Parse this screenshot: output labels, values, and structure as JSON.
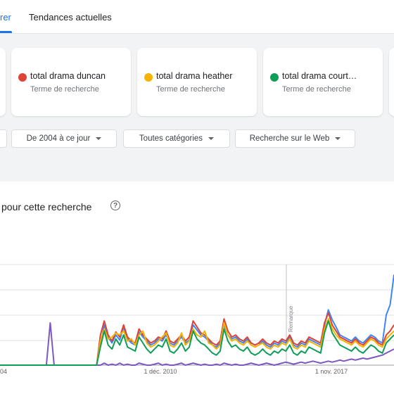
{
  "tabs": [
    {
      "label": "rer"
    },
    {
      "label": "Tendances actuelles"
    }
  ],
  "terms": [
    {
      "term": "total drama duncan",
      "subtitle": "Terme de recherche",
      "color": "#db4437"
    },
    {
      "term": "total drama heather",
      "subtitle": "Terme de recherche",
      "color": "#f4b400"
    },
    {
      "term": "total drama court…",
      "subtitle": "Terme de recherche",
      "color": "#0f9d58"
    }
  ],
  "filters": {
    "period": "De 2004 à ce jour",
    "category": "Toutes catégories",
    "search_type": "Recherche sur le Web"
  },
  "section": {
    "title": "pour cette recherche",
    "help_icon": "help-circle-icon"
  },
  "chart_data": {
    "type": "line",
    "x_ticks": [
      "04",
      "1 déc. 2010",
      "1 nov. 2017"
    ],
    "annotation": "Remarque",
    "series": [
      {
        "color": "#4285f4",
        "values": [
          0,
          0,
          0,
          0,
          0,
          0,
          0,
          0,
          0,
          0,
          0,
          0,
          0,
          0,
          0,
          0,
          0,
          0,
          0,
          0,
          0,
          0,
          0,
          0,
          0,
          0,
          20,
          40,
          28,
          22,
          30,
          25,
          38,
          26,
          22,
          20,
          33,
          28,
          24,
          20,
          22,
          26,
          24,
          30,
          22,
          20,
          24,
          28,
          22,
          25,
          40,
          35,
          30,
          28,
          24,
          20,
          18,
          22,
          40,
          30,
          26,
          28,
          24,
          22,
          26,
          20,
          18,
          20,
          24,
          20,
          18,
          22,
          20,
          24,
          22,
          28,
          20,
          18,
          22,
          20,
          26,
          24,
          22,
          20,
          40,
          55,
          45,
          38,
          30,
          28,
          26,
          24,
          28,
          24,
          22,
          26,
          30,
          28,
          24,
          22,
          50,
          60,
          90
        ]
      },
      {
        "color": "#db4437",
        "values": [
          0,
          0,
          0,
          0,
          0,
          0,
          0,
          0,
          0,
          0,
          0,
          0,
          0,
          0,
          0,
          0,
          0,
          0,
          0,
          0,
          0,
          0,
          0,
          0,
          0,
          0,
          30,
          44,
          30,
          24,
          33,
          28,
          40,
          28,
          24,
          22,
          36,
          30,
          26,
          22,
          24,
          28,
          26,
          34,
          24,
          22,
          26,
          30,
          24,
          28,
          44,
          38,
          32,
          30,
          26,
          22,
          20,
          24,
          46,
          34,
          28,
          30,
          26,
          24,
          28,
          22,
          20,
          22,
          26,
          22,
          20,
          24,
          22,
          26,
          24,
          30,
          22,
          20,
          24,
          22,
          28,
          26,
          24,
          22,
          42,
          52,
          40,
          34,
          28,
          26,
          24,
          22,
          26,
          22,
          20,
          24,
          28,
          26,
          22,
          20,
          30,
          34,
          40
        ]
      },
      {
        "color": "#f4b400",
        "values": [
          0,
          0,
          0,
          0,
          0,
          0,
          0,
          0,
          0,
          0,
          0,
          0,
          0,
          0,
          0,
          0,
          0,
          0,
          0,
          0,
          0,
          0,
          0,
          0,
          0,
          0,
          24,
          36,
          26,
          28,
          32,
          30,
          34,
          24,
          26,
          20,
          30,
          34,
          22,
          18,
          20,
          24,
          28,
          32,
          20,
          18,
          22,
          32,
          20,
          24,
          36,
          30,
          28,
          34,
          22,
          20,
          16,
          20,
          42,
          30,
          24,
          26,
          22,
          20,
          24,
          20,
          18,
          20,
          22,
          18,
          16,
          20,
          18,
          22,
          20,
          26,
          18,
          16,
          20,
          18,
          24,
          22,
          20,
          18,
          36,
          46,
          36,
          30,
          26,
          24,
          22,
          20,
          24,
          20,
          18,
          22,
          26,
          24,
          20,
          18,
          26,
          30,
          34
        ]
      },
      {
        "color": "#0f9d58",
        "values": [
          0,
          0,
          0,
          0,
          0,
          0,
          0,
          0,
          0,
          0,
          0,
          0,
          0,
          0,
          0,
          0,
          0,
          0,
          0,
          0,
          0,
          0,
          0,
          0,
          0,
          0,
          18,
          34,
          20,
          16,
          26,
          20,
          30,
          18,
          16,
          14,
          28,
          22,
          16,
          12,
          16,
          20,
          18,
          26,
          14,
          12,
          16,
          22,
          14,
          18,
          34,
          26,
          22,
          20,
          16,
          12,
          10,
          14,
          36,
          24,
          18,
          20,
          16,
          14,
          18,
          12,
          10,
          12,
          16,
          12,
          10,
          14,
          12,
          16,
          14,
          20,
          12,
          10,
          14,
          12,
          18,
          16,
          14,
          12,
          32,
          44,
          32,
          26,
          20,
          18,
          16,
          14,
          18,
          14,
          12,
          16,
          20,
          18,
          14,
          12,
          22,
          26,
          30
        ]
      },
      {
        "color": "#7e57c2",
        "values": [
          0,
          0,
          0,
          0,
          0,
          0,
          0,
          0,
          0,
          0,
          0,
          0,
          0,
          42,
          0,
          0,
          0,
          0,
          0,
          0,
          0,
          0,
          0,
          0,
          0,
          0,
          0,
          2,
          0,
          1,
          0,
          2,
          0,
          1,
          0,
          0,
          2,
          1,
          0,
          0,
          1,
          2,
          0,
          1,
          0,
          0,
          1,
          2,
          0,
          1,
          2,
          1,
          0,
          1,
          0,
          0,
          1,
          0,
          2,
          1,
          0,
          1,
          0,
          0,
          1,
          2,
          1,
          0,
          1,
          2,
          1,
          0,
          1,
          2,
          3,
          2,
          1,
          2,
          3,
          2,
          3,
          4,
          3,
          2,
          3,
          4,
          3,
          4,
          5,
          4,
          5,
          6,
          5,
          6,
          7,
          6,
          7,
          8,
          9,
          10,
          12,
          14,
          16
        ]
      }
    ]
  }
}
